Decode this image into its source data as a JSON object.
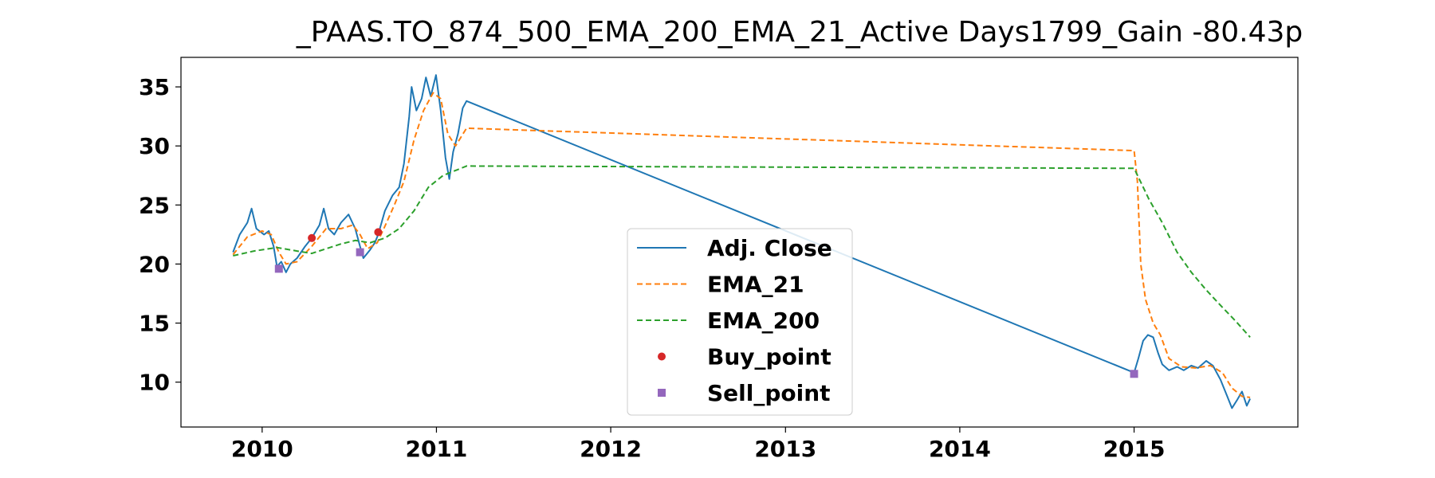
{
  "chart_data": {
    "type": "line",
    "title": "_PAAS.TO_874_500_EMA_200_EMA_21_Active Days1799_Gain -80.43p",
    "xlabel": "",
    "ylabel": "",
    "xlim": [
      "2009-07-15",
      "2015-12-10"
    ],
    "ylim": [
      6.2,
      37.5
    ],
    "x_ticks": [
      {
        "label": "2010",
        "date": "2010-01-01"
      },
      {
        "label": "2011",
        "date": "2011-01-01"
      },
      {
        "label": "2012",
        "date": "2012-01-01"
      },
      {
        "label": "2013",
        "date": "2013-01-01"
      },
      {
        "label": "2014",
        "date": "2014-01-01"
      },
      {
        "label": "2015",
        "date": "2015-01-01"
      }
    ],
    "y_ticks": [
      {
        "label": "10",
        "value": 10
      },
      {
        "label": "15",
        "value": 15
      },
      {
        "label": "20",
        "value": 20
      },
      {
        "label": "25",
        "value": 25
      },
      {
        "label": "30",
        "value": 30
      },
      {
        "label": "35",
        "value": 35
      }
    ],
    "grid": false,
    "legend": {
      "position": "lower-center"
    },
    "series": [
      {
        "name": "Adj. Close",
        "style": "solid",
        "color": "#1f77b4",
        "points": [
          [
            "2009-11-01",
            21.0
          ],
          [
            "2009-11-15",
            22.5
          ],
          [
            "2009-12-01",
            23.5
          ],
          [
            "2009-12-10",
            24.7
          ],
          [
            "2009-12-20",
            23.0
          ],
          [
            "2010-01-05",
            22.5
          ],
          [
            "2010-01-15",
            22.8
          ],
          [
            "2010-01-25",
            21.5
          ],
          [
            "2010-02-01",
            19.8
          ],
          [
            "2010-02-10",
            20.2
          ],
          [
            "2010-02-20",
            19.3
          ],
          [
            "2010-03-01",
            20.0
          ],
          [
            "2010-03-15",
            20.5
          ],
          [
            "2010-04-01",
            21.5
          ],
          [
            "2010-04-15",
            22.2
          ],
          [
            "2010-05-01",
            23.3
          ],
          [
            "2010-05-10",
            24.7
          ],
          [
            "2010-05-20",
            23.0
          ],
          [
            "2010-06-01",
            22.5
          ],
          [
            "2010-06-15",
            23.5
          ],
          [
            "2010-07-01",
            24.2
          ],
          [
            "2010-07-15",
            23.0
          ],
          [
            "2010-07-25",
            21.5
          ],
          [
            "2010-08-01",
            20.5
          ],
          [
            "2010-08-15",
            21.2
          ],
          [
            "2010-08-25",
            21.8
          ],
          [
            "2010-09-01",
            22.5
          ],
          [
            "2010-09-15",
            24.5
          ],
          [
            "2010-10-01",
            25.8
          ],
          [
            "2010-10-15",
            26.5
          ],
          [
            "2010-10-25",
            28.5
          ],
          [
            "2010-11-05",
            32.5
          ],
          [
            "2010-11-10",
            35.0
          ],
          [
            "2010-11-20",
            33.0
          ],
          [
            "2010-12-01",
            34.0
          ],
          [
            "2010-12-10",
            35.8
          ],
          [
            "2010-12-20",
            34.2
          ],
          [
            "2010-12-31",
            36.0
          ],
          [
            "2011-01-10",
            33.0
          ],
          [
            "2011-01-20",
            29.0
          ],
          [
            "2011-01-28",
            27.2
          ],
          [
            "2011-02-05",
            29.5
          ],
          [
            "2011-02-15",
            31.0
          ],
          [
            "2011-02-25",
            33.2
          ],
          [
            "2011-03-05",
            33.8
          ],
          [
            "2015-01-01",
            10.8
          ],
          [
            "2015-01-10",
            12.0
          ],
          [
            "2015-01-20",
            13.5
          ],
          [
            "2015-01-30",
            14.0
          ],
          [
            "2015-02-10",
            13.8
          ],
          [
            "2015-02-20",
            12.5
          ],
          [
            "2015-03-01",
            11.5
          ],
          [
            "2015-03-15",
            11.0
          ],
          [
            "2015-04-01",
            11.3
          ],
          [
            "2015-04-15",
            11.0
          ],
          [
            "2015-05-01",
            11.4
          ],
          [
            "2015-05-15",
            11.2
          ],
          [
            "2015-06-01",
            11.8
          ],
          [
            "2015-06-15",
            11.4
          ],
          [
            "2015-07-01",
            10.2
          ],
          [
            "2015-07-15",
            8.8
          ],
          [
            "2015-07-25",
            7.8
          ],
          [
            "2015-08-05",
            8.5
          ],
          [
            "2015-08-15",
            9.2
          ],
          [
            "2015-08-25",
            8.0
          ],
          [
            "2015-09-01",
            8.6
          ]
        ]
      },
      {
        "name": "EMA_21",
        "style": "dashed",
        "color": "#ff7f0e",
        "points": [
          [
            "2009-11-01",
            20.8
          ],
          [
            "2009-12-01",
            22.3
          ],
          [
            "2010-01-01",
            22.8
          ],
          [
            "2010-01-20",
            22.5
          ],
          [
            "2010-02-05",
            21.0
          ],
          [
            "2010-02-20",
            20.0
          ],
          [
            "2010-03-15",
            20.2
          ],
          [
            "2010-04-15",
            21.5
          ],
          [
            "2010-05-15",
            23.0
          ],
          [
            "2010-06-15",
            23.0
          ],
          [
            "2010-07-10",
            23.3
          ],
          [
            "2010-07-25",
            22.5
          ],
          [
            "2010-08-10",
            21.3
          ],
          [
            "2010-08-30",
            21.8
          ],
          [
            "2010-09-15",
            23.2
          ],
          [
            "2010-10-05",
            25.0
          ],
          [
            "2010-10-25",
            27.0
          ],
          [
            "2010-11-15",
            30.5
          ],
          [
            "2010-12-05",
            33.0
          ],
          [
            "2010-12-25",
            34.5
          ],
          [
            "2011-01-10",
            34.0
          ],
          [
            "2011-01-25",
            31.0
          ],
          [
            "2011-02-10",
            30.0
          ],
          [
            "2011-03-05",
            31.5
          ],
          [
            "2015-01-01",
            29.6
          ],
          [
            "2015-01-08",
            27.0
          ],
          [
            "2015-01-15",
            20.0
          ],
          [
            "2015-01-25",
            17.0
          ],
          [
            "2015-02-10",
            15.0
          ],
          [
            "2015-02-25",
            14.0
          ],
          [
            "2015-03-15",
            12.0
          ],
          [
            "2015-04-10",
            11.3
          ],
          [
            "2015-05-10",
            11.2
          ],
          [
            "2015-06-10",
            11.4
          ],
          [
            "2015-07-05",
            10.8
          ],
          [
            "2015-07-25",
            9.5
          ],
          [
            "2015-08-15",
            8.8
          ],
          [
            "2015-09-01",
            8.7
          ]
        ]
      },
      {
        "name": "EMA_200",
        "style": "dashed",
        "color": "#2ca02c",
        "points": [
          [
            "2009-11-01",
            20.7
          ],
          [
            "2009-12-15",
            21.1
          ],
          [
            "2010-02-01",
            21.4
          ],
          [
            "2010-03-15",
            21.1
          ],
          [
            "2010-04-15",
            20.9
          ],
          [
            "2010-05-15",
            21.3
          ],
          [
            "2010-06-15",
            21.7
          ],
          [
            "2010-07-15",
            22.0
          ],
          [
            "2010-08-15",
            21.8
          ],
          [
            "2010-09-15",
            22.2
          ],
          [
            "2010-10-15",
            23.0
          ],
          [
            "2010-11-15",
            24.5
          ],
          [
            "2010-12-15",
            26.5
          ],
          [
            "2011-01-15",
            27.5
          ],
          [
            "2011-02-15",
            28.0
          ],
          [
            "2011-03-05",
            28.3
          ],
          [
            "2015-01-01",
            28.1
          ],
          [
            "2015-02-01",
            25.5
          ],
          [
            "2015-03-01",
            23.5
          ],
          [
            "2015-04-01",
            21.0
          ],
          [
            "2015-05-01",
            19.3
          ],
          [
            "2015-06-01",
            17.8
          ],
          [
            "2015-07-01",
            16.5
          ],
          [
            "2015-08-01",
            15.2
          ],
          [
            "2015-09-01",
            13.8
          ]
        ]
      },
      {
        "name": "Buy_point",
        "style": "marker-circle",
        "color": "#d62728",
        "points": [
          [
            "2010-04-15",
            22.2
          ],
          [
            "2010-09-01",
            22.7
          ]
        ]
      },
      {
        "name": "Sell_point",
        "style": "marker-square",
        "color": "#9467bd",
        "points": [
          [
            "2010-02-05",
            19.6
          ],
          [
            "2010-07-25",
            21.0
          ],
          [
            "2015-01-01",
            10.7
          ]
        ]
      }
    ]
  }
}
